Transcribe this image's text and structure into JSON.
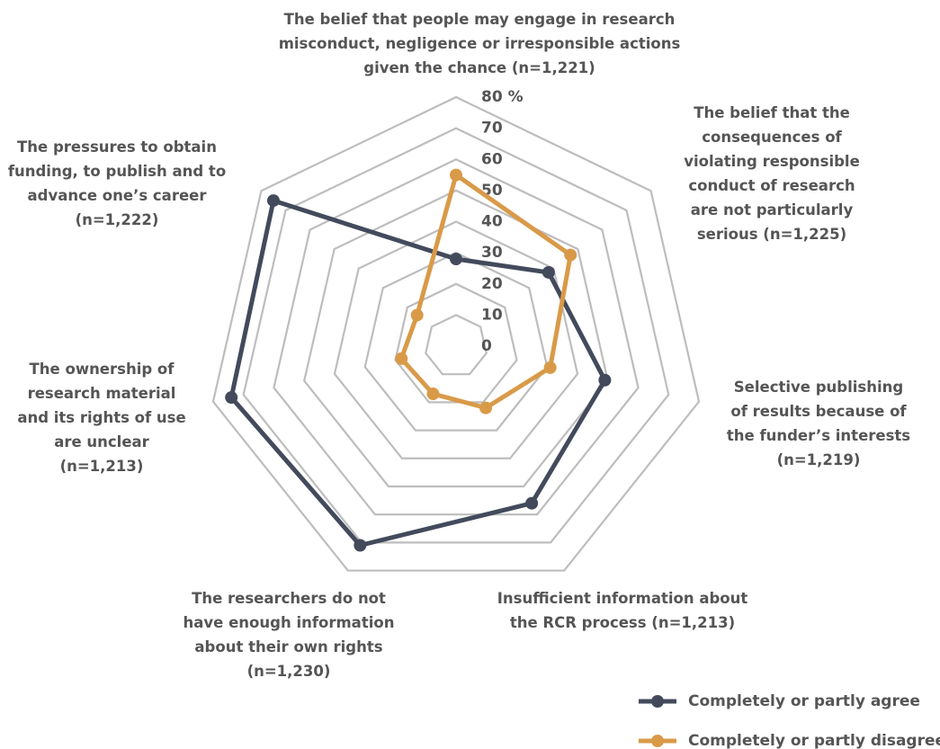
{
  "chart_data": {
    "type": "radar",
    "categories": [
      "The belief that people may engage in research misconduct, negligence or irresponsible actions given the chance (n=1,221)",
      "The belief that the consequences of violating responsible conduct of research are not particularly serious (n=1,225)",
      "Selective publishing of results because of the funder’s interests (n=1,219)",
      "Insufficient information about the RCR process (n=1,213)",
      "The researchers do not have enough information about their own rights (n=1,230)",
      "The ownership of research material and its rights of use are unclear (n=1,213)",
      "The pressures to obtain funding, to publish and to advance one’s career (n=1,222)"
    ],
    "series": [
      {
        "name": "Completely or partly agree",
        "color": "#434a5c",
        "values": [
          28,
          38,
          49,
          56,
          71,
          74,
          75
        ]
      },
      {
        "name": "Completely or partly disagree",
        "color": "#d99a48",
        "values": [
          55,
          47,
          31,
          22,
          17,
          18,
          16
        ]
      }
    ],
    "ylim": [
      0,
      80
    ],
    "yticks": [
      0,
      10,
      20,
      30,
      40,
      50,
      60,
      70,
      {
        "value": 80,
        "label": "80 %"
      }
    ],
    "grid": true
  }
}
